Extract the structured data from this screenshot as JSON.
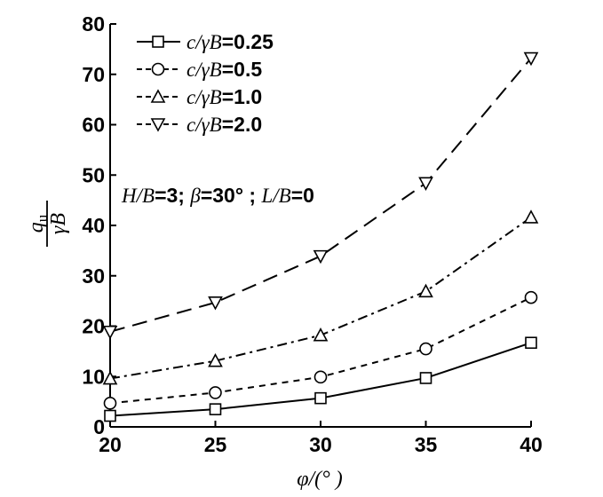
{
  "chart_data": {
    "type": "line",
    "xlabel": "φ/(° )",
    "ylabel": {
      "numerator": "q",
      "numerator_sub": "u",
      "denominator": "γB"
    },
    "xlim": [
      20,
      40
    ],
    "ylim": [
      0,
      80
    ],
    "x_ticks": [
      "20",
      "25",
      "30",
      "35",
      "40"
    ],
    "y_ticks": [
      "0",
      "10",
      "20",
      "30",
      "40",
      "50",
      "60",
      "70",
      "80"
    ],
    "x": [
      20,
      25,
      30,
      35,
      40
    ],
    "series": [
      {
        "name": "c/γB=0.25",
        "label_var": "c/γB",
        "label_val": "=0.25",
        "marker": "square",
        "dash": "solid",
        "values": [
          2.2,
          3.5,
          5.7,
          9.7,
          16.7
        ]
      },
      {
        "name": "c/γB=0.5",
        "label_var": "c/γB",
        "label_val": "=0.5",
        "marker": "circle",
        "dash": "short-dash",
        "values": [
          4.7,
          6.8,
          9.9,
          15.5,
          25.7
        ]
      },
      {
        "name": "c/γB=1.0",
        "label_var": "c/γB",
        "label_val": "=1.0",
        "marker": "triangle-up",
        "dash": "dash-dot",
        "values": [
          9.6,
          13.1,
          18.2,
          26.9,
          41.6
        ]
      },
      {
        "name": "c/γB=2.0",
        "label_var": "c/γB",
        "label_val": "=2.0",
        "marker": "triangle-down",
        "dash": "long-dash",
        "values": [
          18.9,
          24.7,
          33.9,
          48.4,
          73.2
        ]
      }
    ],
    "annotation": {
      "parts": [
        "H/B",
        "=3; ",
        "β",
        "=30°",
        " ; ",
        "L/B",
        "=0"
      ]
    },
    "legend_position": "top-left",
    "grid": false
  }
}
